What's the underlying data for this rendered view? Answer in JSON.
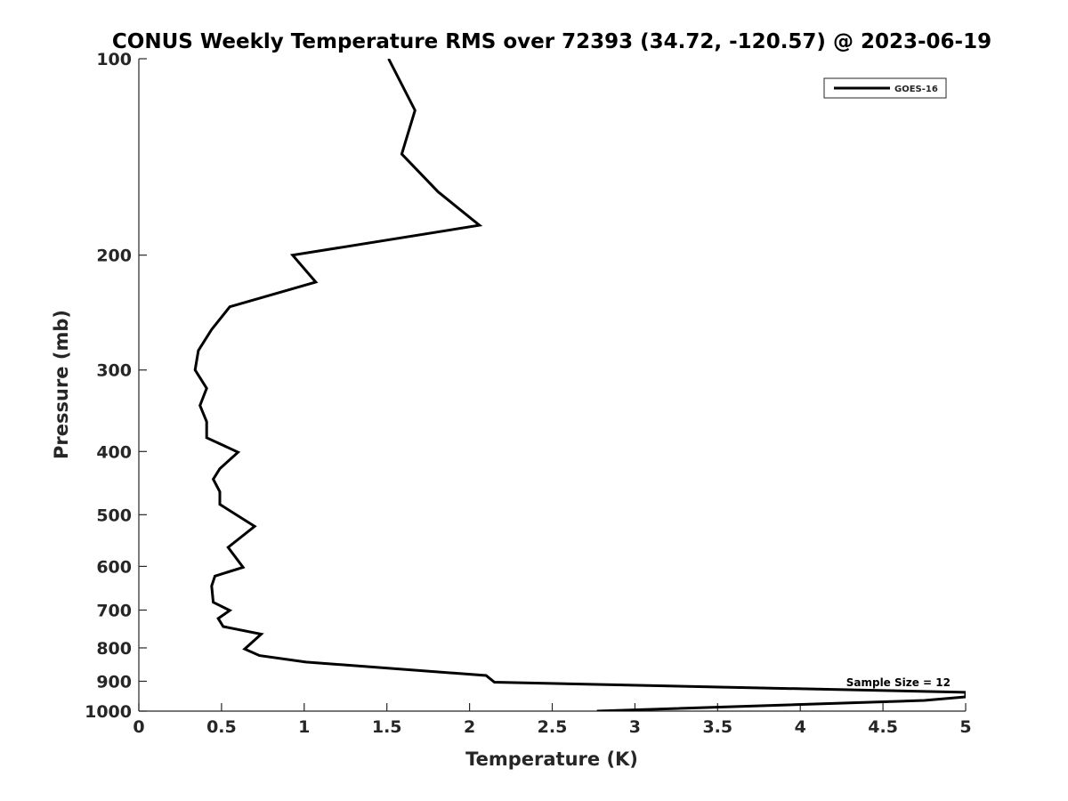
{
  "chart_data": {
    "type": "line",
    "title": "CONUS Weekly Temperature RMS over 72393 (34.72, -120.57) @ 2023-06-19",
    "xlabel": "Temperature (K)",
    "ylabel": "Pressure (mb)",
    "xlim": [
      0,
      5
    ],
    "ylim": [
      100,
      1000
    ],
    "yscale": "log",
    "y_reversed": true,
    "grid": false,
    "xticks": [
      "0",
      "0.5",
      "1",
      "1.5",
      "2",
      "2.5",
      "3",
      "3.5",
      "4",
      "4.5",
      "5"
    ],
    "xtick_values": [
      0,
      0.5,
      1,
      1.5,
      2,
      2.5,
      3,
      3.5,
      4,
      4.5,
      5
    ],
    "yticks": [
      "100",
      "200",
      "300",
      "400",
      "500",
      "600",
      "700",
      "800",
      "900",
      "1000"
    ],
    "ytick_values": [
      100,
      200,
      300,
      400,
      500,
      600,
      700,
      800,
      900,
      1000
    ],
    "legend": {
      "placement": "top-right",
      "entries": [
        "GOES-16"
      ]
    },
    "annotation": "Sample Size = 12",
    "series": [
      {
        "name": "GOES-16",
        "color": "#000000",
        "points": [
          [
            1.51,
            100
          ],
          [
            1.67,
            120
          ],
          [
            1.59,
            140
          ],
          [
            1.81,
            160
          ],
          [
            2.06,
            180
          ],
          [
            0.93,
            200
          ],
          [
            1.07,
            220
          ],
          [
            0.55,
            240
          ],
          [
            0.44,
            260
          ],
          [
            0.36,
            280
          ],
          [
            0.34,
            300
          ],
          [
            0.41,
            320
          ],
          [
            0.37,
            340
          ],
          [
            0.41,
            360
          ],
          [
            0.41,
            381
          ],
          [
            0.6,
            401
          ],
          [
            0.49,
            425
          ],
          [
            0.45,
            441
          ],
          [
            0.49,
            461
          ],
          [
            0.49,
            482
          ],
          [
            0.7,
            521
          ],
          [
            0.54,
            561
          ],
          [
            0.63,
            602
          ],
          [
            0.46,
            621
          ],
          [
            0.44,
            643
          ],
          [
            0.45,
            681
          ],
          [
            0.55,
            701
          ],
          [
            0.48,
            721
          ],
          [
            0.51,
            742
          ],
          [
            0.74,
            762
          ],
          [
            0.64,
            803
          ],
          [
            0.73,
            822
          ],
          [
            1.01,
            841
          ],
          [
            2.1,
            882
          ],
          [
            2.15,
            903
          ],
          [
            5.0,
            936
          ],
          [
            5.0,
            951
          ],
          [
            4.75,
            963
          ],
          [
            2.77,
            1000
          ]
        ]
      }
    ]
  }
}
